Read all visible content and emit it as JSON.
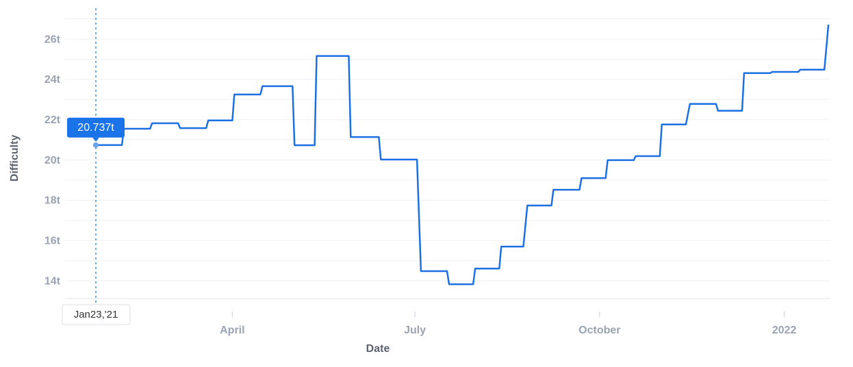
{
  "chart_data": {
    "type": "line",
    "x_label": "Date",
    "y_label": "Difficulty",
    "color": "#1b6fe3",
    "x": [
      "2021-01-23",
      "2021-02-05",
      "2021-02-06",
      "2021-02-19",
      "2021-02-20",
      "2021-03-05",
      "2021-03-06",
      "2021-03-19",
      "2021-03-20",
      "2021-04-01",
      "2021-04-02",
      "2021-04-15",
      "2021-04-16",
      "2021-05-01",
      "2021-05-02",
      "2021-05-12",
      "2021-05-13",
      "2021-05-29",
      "2021-05-30",
      "2021-06-13",
      "2021-06-14",
      "2021-07-02",
      "2021-07-04",
      "2021-07-17",
      "2021-07-18",
      "2021-07-30",
      "2021-07-31",
      "2021-08-12",
      "2021-08-13",
      "2021-08-24",
      "2021-08-26",
      "2021-09-07",
      "2021-09-08",
      "2021-09-21",
      "2021-09-22",
      "2021-10-04",
      "2021-10-05",
      "2021-10-18",
      "2021-10-19",
      "2021-10-31",
      "2021-11-01",
      "2021-11-13",
      "2021-11-15",
      "2021-11-28",
      "2021-11-29",
      "2021-12-11",
      "2021-12-12",
      "2021-12-25",
      "2021-12-26",
      "2022-01-08",
      "2022-01-09",
      "2022-01-21",
      "2022-01-23"
    ],
    "values": [
      20.737,
      20.737,
      21.55,
      21.55,
      21.82,
      21.82,
      21.58,
      21.58,
      21.96,
      21.96,
      23.25,
      23.25,
      23.66,
      23.66,
      20.73,
      20.73,
      25.16,
      25.16,
      21.14,
      21.14,
      20.02,
      20.02,
      14.48,
      14.48,
      13.83,
      13.83,
      14.61,
      14.61,
      15.7,
      15.7,
      17.74,
      17.74,
      18.52,
      18.52,
      19.1,
      19.1,
      19.99,
      19.99,
      20.19,
      20.19,
      21.76,
      21.76,
      22.78,
      22.78,
      22.44,
      22.44,
      24.31,
      24.31,
      24.37,
      24.37,
      24.48,
      24.48,
      26.72
    ],
    "xlim": [
      "2021-01-23",
      "2022-01-24"
    ],
    "xticks": [
      {
        "value": "2021-04-01",
        "label": "April"
      },
      {
        "value": "2021-07-01",
        "label": "July"
      },
      {
        "value": "2021-10-01",
        "label": "October"
      },
      {
        "value": "2022-01-01",
        "label": "2022"
      }
    ],
    "ylim": [
      13.12,
      27.09
    ],
    "yticks": [
      {
        "value": 14,
        "label": "14t"
      },
      {
        "value": 16,
        "label": "16t"
      },
      {
        "value": 18,
        "label": "18t"
      },
      {
        "value": 20,
        "label": "20t"
      },
      {
        "value": 22,
        "label": "22t"
      },
      {
        "value": 24,
        "label": "24t"
      },
      {
        "value": 26,
        "label": "26t"
      }
    ],
    "minor_yticks": [
      15,
      17,
      19,
      21,
      23,
      25,
      27
    ],
    "grid": true,
    "tooltip": {
      "label": "20.737t",
      "x_label": "Jan23,'21"
    }
  }
}
